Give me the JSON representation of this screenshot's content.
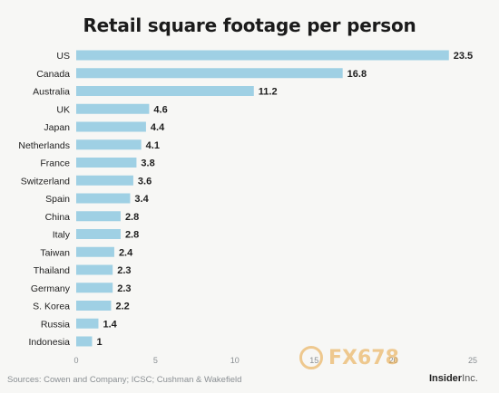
{
  "chart_data": {
    "type": "bar",
    "orientation": "horizontal",
    "title": "Retail square footage per person",
    "categories": [
      "US",
      "Canada",
      "Australia",
      "UK",
      "Japan",
      "Netherlands",
      "France",
      "Switzerland",
      "Spain",
      "China",
      "Italy",
      "Taiwan",
      "Thailand",
      "Germany",
      "S. Korea",
      "Russia",
      "Indonesia"
    ],
    "values": [
      23.5,
      16.8,
      11.2,
      4.6,
      4.4,
      4.1,
      3.8,
      3.6,
      3.4,
      2.8,
      2.8,
      2.4,
      2.3,
      2.3,
      2.2,
      1.4,
      1
    ],
    "value_labels": [
      "23.5",
      "16.8",
      "11.2",
      "4.6",
      "4.4",
      "4.1",
      "3.8",
      "3.6",
      "3.4",
      "2.8",
      "2.8",
      "2.4",
      "2.3",
      "2.3",
      "2.2",
      "1.4",
      "1"
    ],
    "xlim": [
      0,
      25
    ],
    "xticks": [
      0,
      5,
      10,
      15,
      20,
      25
    ],
    "grid": false,
    "bar_color": "#9fd0e4"
  },
  "footer": {
    "source": "Sources: Cowen and Company; ICSC; Cushman & Wakefield",
    "brand_bold": "Insider",
    "brand_light": "Inc."
  },
  "watermark": {
    "text": "FX678"
  }
}
